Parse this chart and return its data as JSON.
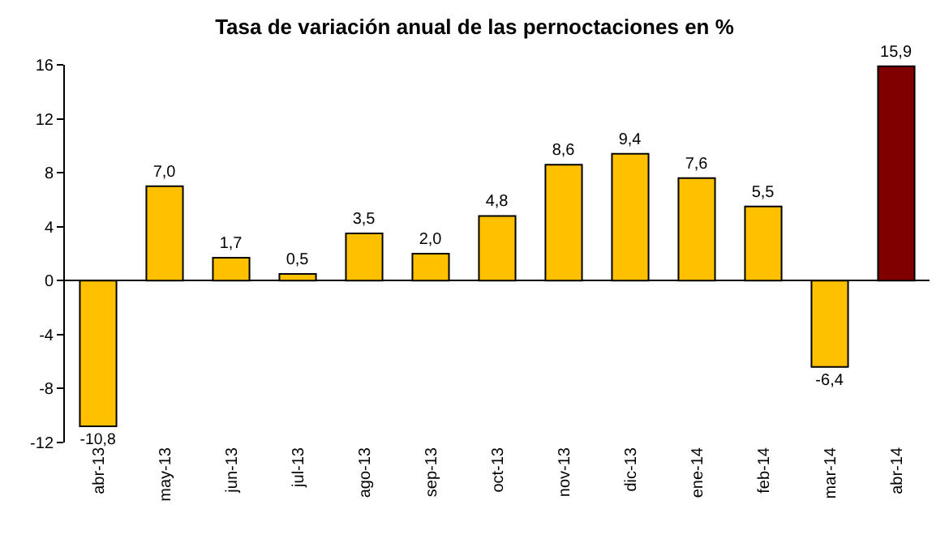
{
  "chart_data": {
    "type": "bar",
    "title": "Tasa de variación anual de las pernoctaciones en %",
    "categories": [
      "abr-13",
      "may-13",
      "jun-13",
      "jul-13",
      "ago-13",
      "sep-13",
      "oct-13",
      "nov-13",
      "dic-13",
      "ene-14",
      "feb-14",
      "mar-14",
      "abr-14"
    ],
    "values": [
      -10.8,
      7.0,
      1.7,
      0.5,
      3.5,
      2.0,
      4.8,
      8.6,
      9.4,
      7.6,
      5.5,
      -6.4,
      15.9
    ],
    "value_labels": [
      "-10,8",
      "7,0",
      "1,7",
      "0,5",
      "3,5",
      "2,0",
      "4,8",
      "8,6",
      "9,4",
      "7,6",
      "5,5",
      "-6,4",
      "15,9"
    ],
    "colors": [
      "#ffc000",
      "#ffc000",
      "#ffc000",
      "#ffc000",
      "#ffc000",
      "#ffc000",
      "#ffc000",
      "#ffc000",
      "#ffc000",
      "#ffc000",
      "#ffc000",
      "#ffc000",
      "#800000"
    ],
    "ylim": [
      -12,
      16
    ],
    "yticks": [
      -12,
      -8,
      -4,
      0,
      4,
      8,
      12,
      16
    ]
  }
}
